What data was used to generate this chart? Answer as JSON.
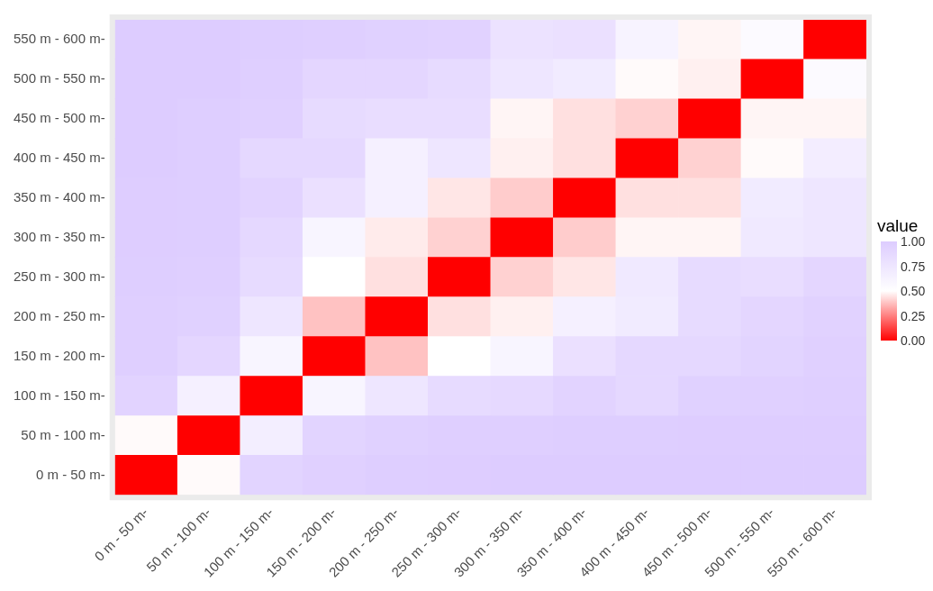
{
  "chart_data": {
    "type": "heatmap",
    "clabel": "value",
    "categories": [
      "0 m - 50 m-",
      "50 m - 100 m-",
      "100 m - 150 m-",
      "150 m - 200 m-",
      "200 m - 250 m-",
      "250 m - 300 m-",
      "300 m - 350 m-",
      "350 m - 400 m-",
      "400 m - 450 m-",
      "450 m - 500 m-",
      "500 m - 550 m-",
      "550 m - 600 m-"
    ],
    "y_categories": [
      "550 m - 600 m-",
      "500 m - 550 m-",
      "450 m - 500 m-",
      "400 m - 450 m-",
      "350 m - 400 m-",
      "300 m - 350 m-",
      "250 m - 300 m-",
      "200 m - 250 m-",
      "150 m - 200 m-",
      "100 m - 150 m-",
      "50 m - 100 m-",
      "0 m - 50 m-"
    ],
    "cells": [
      [
        1,
        1,
        0.98,
        0.97,
        0.95,
        0.94,
        0.78,
        0.8,
        0.62,
        0.48,
        0.55,
        0
      ],
      [
        1,
        1,
        0.97,
        0.9,
        0.9,
        0.85,
        0.75,
        0.7,
        0.49,
        0.47,
        0,
        0.55
      ],
      [
        1,
        0.98,
        0.96,
        0.85,
        0.83,
        0.83,
        0.48,
        0.44,
        0.41,
        0,
        0.48,
        0.48
      ],
      [
        1,
        0.98,
        0.88,
        0.88,
        0.65,
        0.75,
        0.47,
        0.44,
        0,
        0.41,
        0.49,
        0.68
      ],
      [
        0.99,
        0.98,
        0.93,
        0.8,
        0.65,
        0.45,
        0.4,
        0,
        0.44,
        0.44,
        0.7,
        0.75
      ],
      [
        0.99,
        0.98,
        0.88,
        0.6,
        0.46,
        0.41,
        0,
        0.4,
        0.48,
        0.48,
        0.72,
        0.75
      ],
      [
        0.98,
        0.97,
        0.85,
        0.5,
        0.44,
        0,
        0.41,
        0.45,
        0.72,
        0.85,
        0.83,
        0.9
      ],
      [
        0.97,
        0.95,
        0.75,
        0.38,
        0,
        0.44,
        0.47,
        0.65,
        0.7,
        0.85,
        0.9,
        0.94
      ],
      [
        0.97,
        0.9,
        0.6,
        0,
        0.38,
        0.5,
        0.6,
        0.8,
        0.88,
        0.88,
        0.92,
        0.96
      ],
      [
        0.93,
        0.65,
        0,
        0.6,
        0.75,
        0.85,
        0.87,
        0.93,
        0.88,
        0.95,
        0.96,
        0.97
      ],
      [
        0.49,
        0,
        0.67,
        0.92,
        0.95,
        0.97,
        0.97,
        0.98,
        0.98,
        0.99,
        0.99,
        0.99
      ],
      [
        0,
        0.49,
        0.92,
        0.96,
        0.98,
        0.99,
        1,
        1,
        1,
        1,
        1,
        1
      ]
    ],
    "clim": [
      0,
      1
    ],
    "cticks": [
      {
        "value": 0,
        "label": "0.00"
      },
      {
        "value": 0.25,
        "label": "0.25"
      },
      {
        "value": 0.5,
        "label": "0.50"
      },
      {
        "value": 0.75,
        "label": "0.75"
      },
      {
        "value": 1,
        "label": "1.00"
      }
    ]
  }
}
